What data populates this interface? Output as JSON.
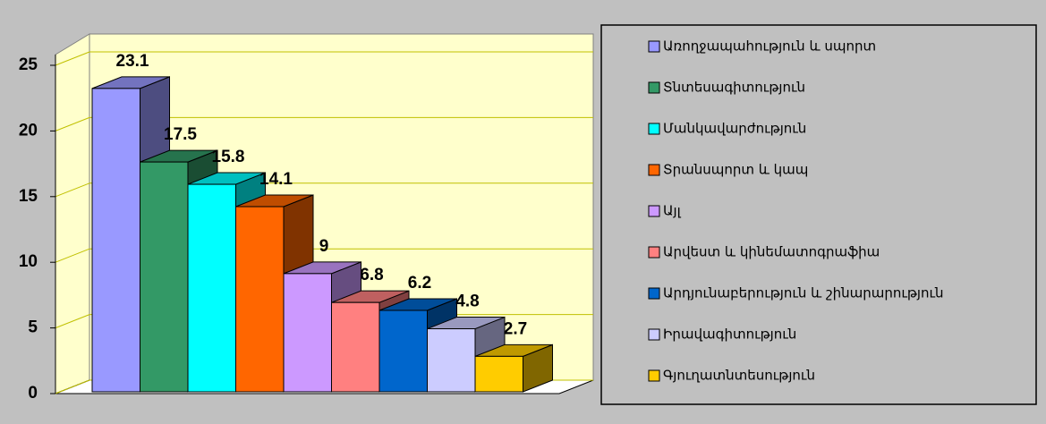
{
  "chart_data": {
    "type": "bar3d",
    "categories": [
      "Առողջապահություն և սպորտ",
      "Տնտեսագիտություն",
      "Մանկավարժություն",
      "Տրանսպորտ և կապ",
      "Այլ",
      "Արվեստ և կինեմատոգրաֆիա",
      "Արդյունաբերություն և շինարարություն",
      "Իրավագիտություն",
      "Գյուղատնտեսություն"
    ],
    "values": [
      23.1,
      17.5,
      15.8,
      14.1,
      9,
      6.8,
      6.2,
      4.8,
      2.7
    ],
    "colors": [
      "#9999ff",
      "#339966",
      "#00ffff",
      "#ff6600",
      "#cc99ff",
      "#ff8080",
      "#0066cc",
      "#ccccff",
      "#ffcc00"
    ],
    "ylim": [
      0,
      25
    ],
    "yticks": [
      0,
      5,
      10,
      15,
      20,
      25
    ],
    "grid": true,
    "legend": "right"
  }
}
